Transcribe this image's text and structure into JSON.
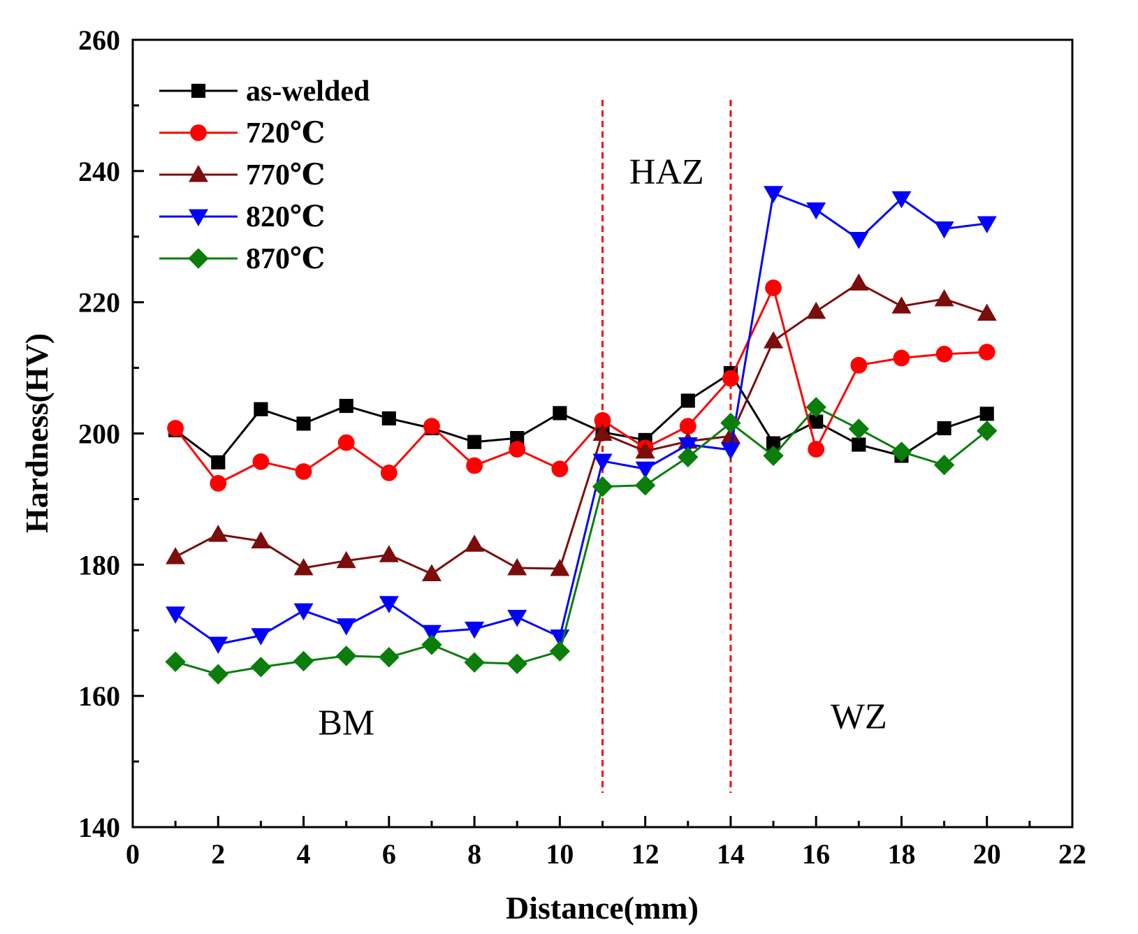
{
  "chart_data": {
    "type": "line",
    "xlabel": "Distance(mm)",
    "ylabel": "Hardness(HV)",
    "xlim": [
      0,
      22
    ],
    "ylim": [
      140,
      260
    ],
    "xticks": [
      0,
      2,
      4,
      6,
      8,
      10,
      12,
      14,
      16,
      18,
      20,
      22
    ],
    "yticks": [
      140,
      160,
      180,
      200,
      220,
      240,
      260
    ],
    "grid": false,
    "legend_position": "top-left",
    "x": [
      1,
      2,
      3,
      4,
      5,
      6,
      7,
      8,
      9,
      10,
      11,
      12,
      13,
      14,
      15,
      16,
      17,
      18,
      19,
      20
    ],
    "series": [
      {
        "name": "as-welded",
        "color": "#000000",
        "marker": "square",
        "values": [
          200.5,
          195.6,
          203.7,
          201.5,
          204.2,
          202.3,
          200.8,
          198.7,
          199.3,
          203.1,
          200.2,
          199.0,
          205.0,
          209.2,
          198.5,
          201.8,
          198.3,
          196.6,
          200.8,
          203.0
        ]
      },
      {
        "name": "720℃",
        "color": "#ff0000",
        "marker": "circle",
        "values": [
          200.8,
          192.4,
          195.7,
          194.2,
          198.6,
          194.0,
          201.1,
          195.1,
          197.6,
          194.6,
          202.0,
          197.8,
          201.1,
          208.4,
          222.2,
          197.6,
          210.4,
          211.5,
          212.1,
          212.4
        ]
      },
      {
        "name": "770℃",
        "color": "#7b0d0d",
        "marker": "triangle-up",
        "values": [
          181.2,
          184.6,
          183.6,
          179.5,
          180.6,
          181.5,
          178.6,
          183.1,
          179.5,
          179.4,
          200.0,
          197.3,
          198.8,
          199.6,
          214.1,
          218.6,
          222.9,
          219.4,
          220.5,
          218.3
        ]
      },
      {
        "name": "820℃",
        "color": "#0000ff",
        "marker": "triangle-down",
        "values": [
          172.5,
          167.9,
          169.2,
          173.0,
          170.7,
          174.1,
          169.7,
          170.2,
          172.0,
          169.0,
          195.8,
          194.6,
          198.3,
          197.5,
          236.6,
          234.1,
          229.6,
          235.8,
          231.2,
          232.0
        ]
      },
      {
        "name": "870℃",
        "color": "#0a7d0a",
        "marker": "diamond",
        "values": [
          165.2,
          163.3,
          164.4,
          165.3,
          166.1,
          165.9,
          167.8,
          165.1,
          164.9,
          166.8,
          191.9,
          192.1,
          196.4,
          201.6,
          196.6,
          204.0,
          200.7,
          197.2,
          195.2,
          200.4
        ]
      }
    ],
    "reference_lines": [
      {
        "x": 11,
        "color": "#ff0000",
        "style": "dashed"
      },
      {
        "x": 14,
        "color": "#ff0000",
        "style": "dashed"
      }
    ],
    "annotations": [
      {
        "text": "HAZ",
        "x": 12.5,
        "y": 240
      },
      {
        "text": "BM",
        "x": 5,
        "y": 156
      },
      {
        "text": "WZ",
        "x": 17,
        "y": 157
      }
    ]
  }
}
